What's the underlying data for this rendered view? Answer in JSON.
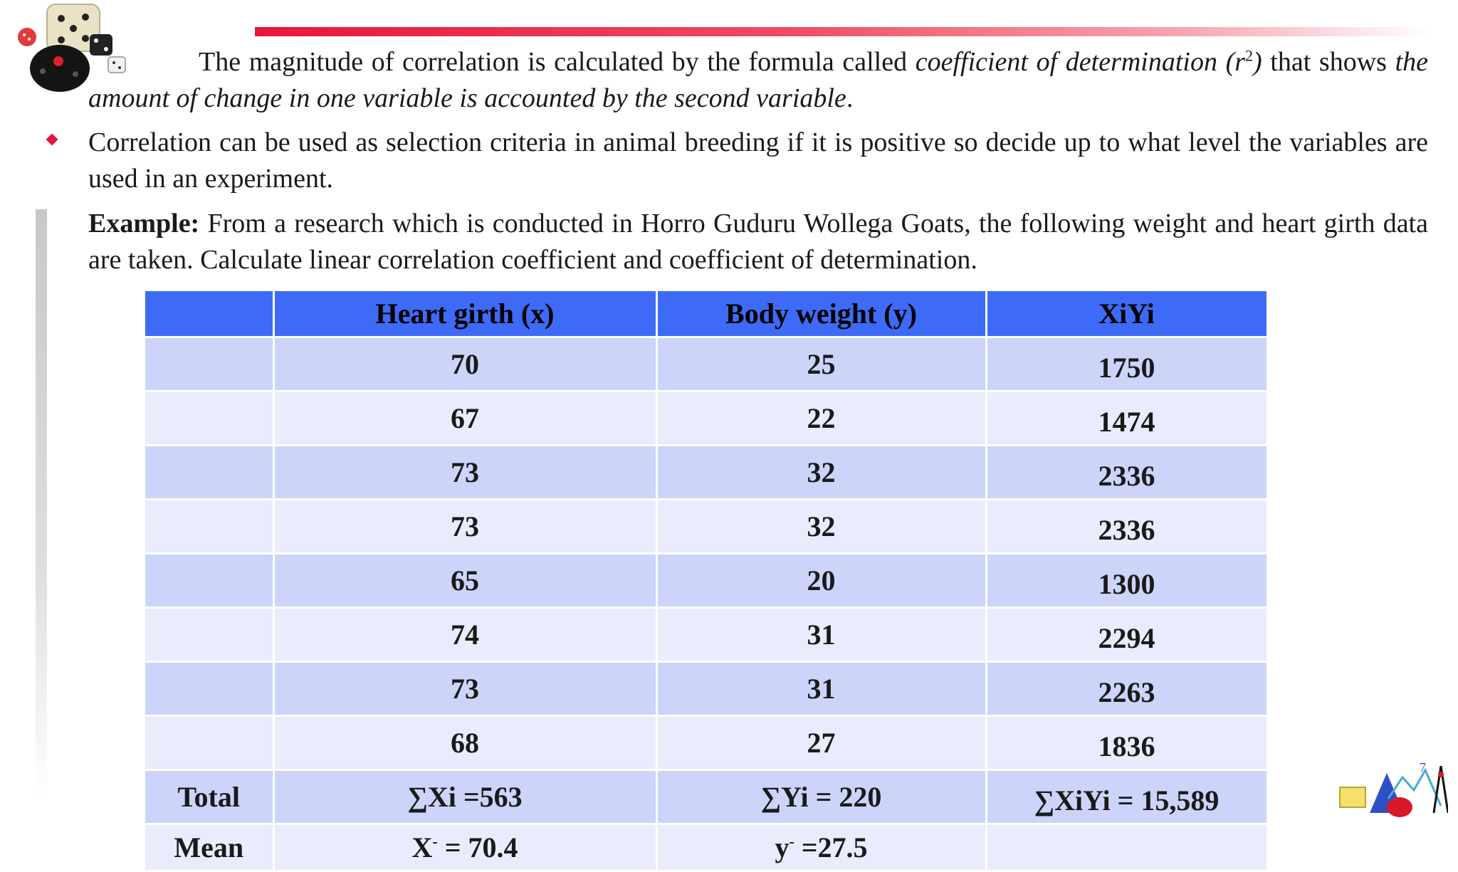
{
  "paragraph1": {
    "part1": "The magnitude of correlation is calculated by the formula called ",
    "italic1": "coefficient of determination (r",
    "sup": "2",
    "italic1_end": ")",
    "part2": " that shows ",
    "italic2": "the amount of change in one variable is accounted by the second variable",
    "end": "."
  },
  "paragraph2": "Correlation can be used as selection criteria in animal breeding if it is positive so decide up to what level the variables are used in an experiment.",
  "paragraph3": {
    "label": "Example:",
    "text": " From a research which is conducted in Horro Guduru Wollega Goats, the following weight and heart girth data are taken. Calculate linear correlation coefficient and coefficient of determination."
  },
  "table": {
    "headers": [
      "",
      "Heart girth (x)",
      "Body weight (y)",
      "XiYi"
    ],
    "rows": [
      [
        "",
        "70",
        "25",
        "1750"
      ],
      [
        "",
        "67",
        "22",
        "1474"
      ],
      [
        "",
        "73",
        "32",
        "2336"
      ],
      [
        "",
        "73",
        "32",
        "2336"
      ],
      [
        "",
        "65",
        "20",
        "1300"
      ],
      [
        "",
        "74",
        "31",
        "2294"
      ],
      [
        "",
        "73",
        "31",
        "2263"
      ],
      [
        "",
        "68",
        "27",
        "1836"
      ]
    ],
    "total": {
      "label": "Total",
      "x": "∑Xi =563",
      "y": "∑Yi = 220",
      "xy": "∑XiYi = 15,589"
    },
    "mean": {
      "label": "Mean",
      "x_pre": "X",
      "x_sup": "-",
      "x_post": " = 70.4",
      "y_pre": "y",
      "y_sup": "-",
      "y_post": " =27.5",
      "xy": ""
    }
  },
  "colors": {
    "header": "#3d6bf7",
    "row_dark": "#ccd4fa",
    "row_light": "#e9ecfc",
    "accent": "#e8163a"
  }
}
